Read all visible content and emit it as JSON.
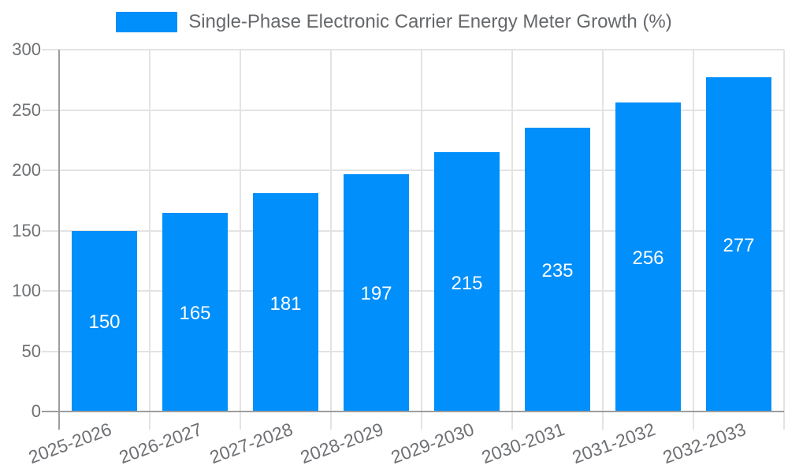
{
  "chart_data": {
    "type": "bar",
    "title": "Single-Phase Electronic Carrier Energy Meter Growth (%)",
    "categories": [
      "2025-2026",
      "2026-2027",
      "2027-2028",
      "2028-2029",
      "2029-2030",
      "2030-2031",
      "2031-2032",
      "2032-2033"
    ],
    "values": [
      150,
      165,
      181,
      197,
      215,
      235,
      256,
      277
    ],
    "xlabel": "",
    "ylabel": "",
    "ylim": [
      0,
      300
    ],
    "ytick_step": 50,
    "grid": true,
    "legend_position": "top",
    "colors": {
      "bar": "#008FFB",
      "value_label": "#FFFFFF",
      "axis_line": "#9d9d9d",
      "gridline": "#e3e3e3",
      "tick_label": "#6e7073",
      "legend_text": "#66686b"
    }
  }
}
